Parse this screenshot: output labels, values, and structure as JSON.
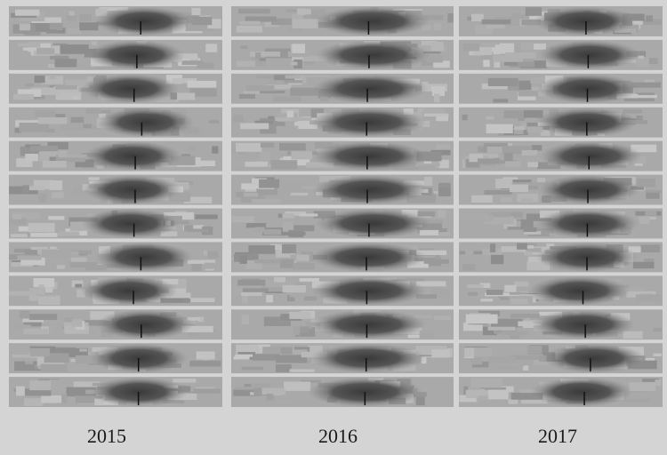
{
  "panels": [
    {
      "label": "2015"
    },
    {
      "label": "2016"
    },
    {
      "label": "2017"
    }
  ]
}
